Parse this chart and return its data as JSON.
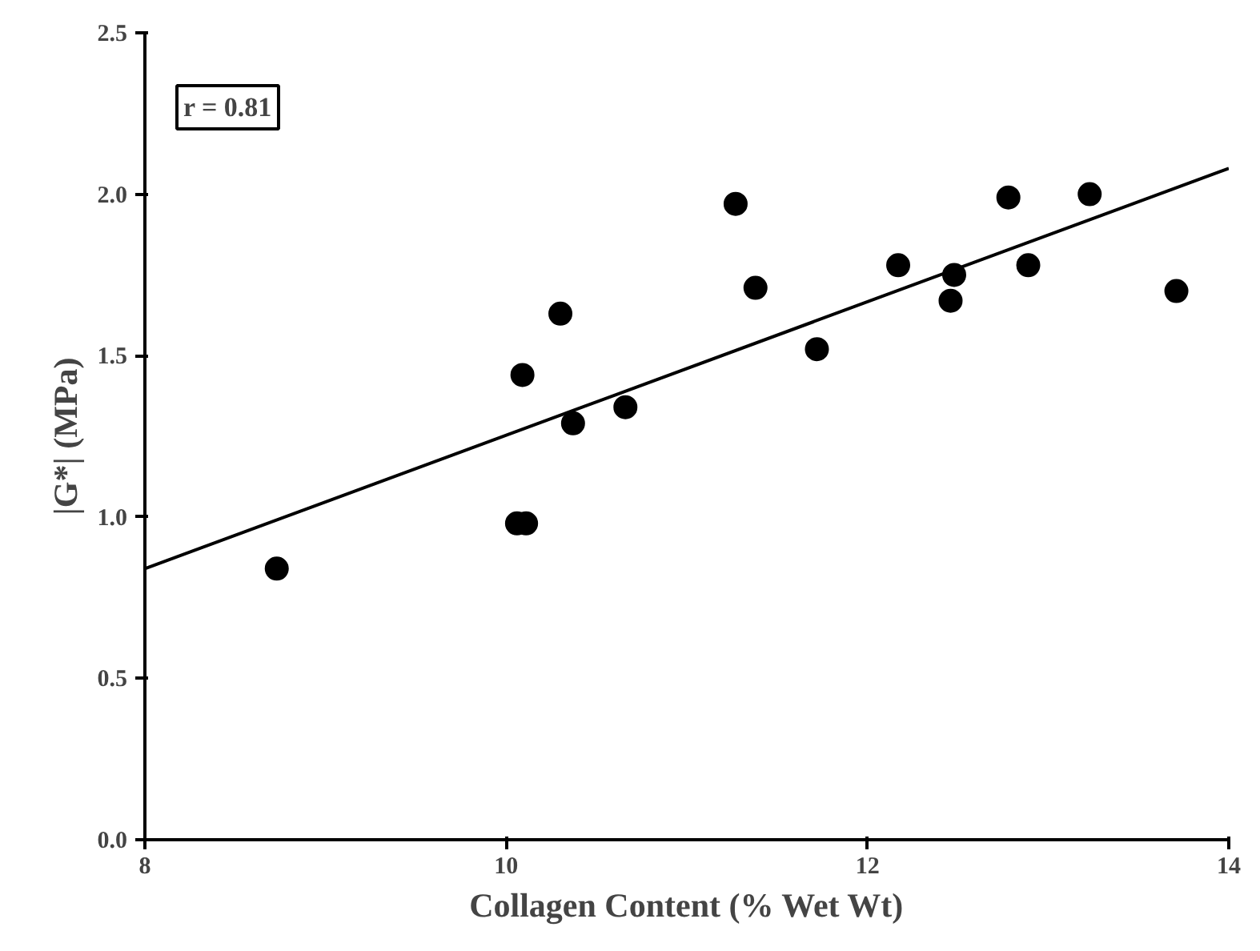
{
  "chart_data": {
    "type": "scatter",
    "xlabel": "Collagen Content (% Wet Wt)",
    "ylabel": "|G*| (MPa)",
    "annotations": [
      "r = 0.81"
    ],
    "xlim": [
      8,
      14
    ],
    "ylim": [
      0,
      2.5
    ],
    "xticks": [
      8,
      10,
      12,
      14
    ],
    "yticks": [
      {
        "value": 0,
        "label": "0.0"
      },
      {
        "value": 0.5,
        "label": "0.5"
      },
      {
        "value": 1,
        "label": "1.0"
      },
      {
        "value": 1.5,
        "label": "1.5"
      },
      {
        "value": 2,
        "label": "2.0"
      },
      {
        "value": 2.5,
        "label": "2.5"
      }
    ],
    "grid": false,
    "series": [
      {
        "marker": "circle",
        "color": "#000000",
        "x": [
          8.73,
          10.06,
          10.11,
          10.09,
          10.3,
          10.37,
          10.66,
          11.27,
          11.38,
          11.72,
          12.17,
          12.48,
          12.46,
          12.78,
          12.89,
          13.23,
          13.71
        ],
        "values": [
          0.84,
          0.98,
          0.98,
          1.44,
          1.63,
          1.29,
          1.34,
          1.97,
          1.71,
          1.52,
          1.78,
          1.75,
          1.67,
          1.99,
          1.78,
          2.0,
          1.7
        ]
      },
      {
        "type": "line",
        "color": "#000000",
        "line_style": "solid",
        "x": [
          8,
          14
        ],
        "values": [
          0.84,
          2.08
        ]
      }
    ]
  }
}
